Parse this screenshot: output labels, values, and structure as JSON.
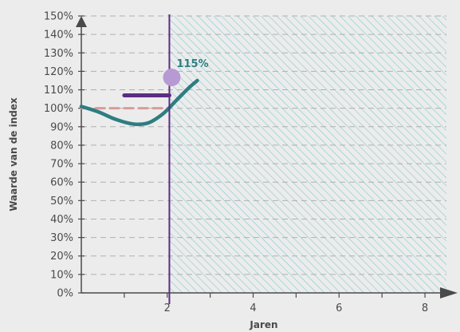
{
  "chart_data": {
    "type": "line",
    "title": "",
    "xlabel": "Jaren",
    "ylabel": "Waarde van de index",
    "xlim": [
      0,
      8.5
    ],
    "ylim": [
      0,
      150
    ],
    "x_ticks": [
      2,
      4,
      6,
      8
    ],
    "x_minor_ticks": [
      1,
      3,
      5,
      7
    ],
    "y_ticks": [
      0,
      10,
      20,
      30,
      40,
      50,
      60,
      70,
      80,
      90,
      100,
      110,
      120,
      130,
      140,
      150
    ],
    "y_tick_labels": [
      "0%",
      "10%",
      "20%",
      "30%",
      "40%",
      "50%",
      "60%",
      "70%",
      "80%",
      "90%",
      "100%",
      "110%",
      "120%",
      "130%",
      "140%",
      "150%"
    ],
    "grid": "horizontal dashed",
    "series": [
      {
        "points": [
          {
            "x": 0,
            "y": 101
          },
          {
            "x": 0.4,
            "y": 98
          },
          {
            "x": 0.8,
            "y": 94
          },
          {
            "x": 1.2,
            "y": 91.5
          },
          {
            "x": 1.55,
            "y": 92
          },
          {
            "x": 1.9,
            "y": 97
          },
          {
            "x": 2.2,
            "y": 104
          },
          {
            "x": 2.5,
            "y": 111
          },
          {
            "x": 2.7,
            "y": 115
          }
        ],
        "color": "#2e7d82"
      }
    ],
    "reference_lines": [
      {
        "y": 100,
        "x_start": 0,
        "x_end": 2.05,
        "style": "dashed",
        "color": "#d99a9a"
      },
      {
        "y": 107,
        "x_start": 1.0,
        "x_end": 2.05,
        "style": "solid",
        "color": "#5c2d82"
      }
    ],
    "vertical_marker": {
      "x": 2.05,
      "color": "#5c2d82"
    },
    "highlight_point": {
      "x": 2.05,
      "y": 115,
      "label": "115%",
      "color": "#b79ad3",
      "label_color": "#2e7d82"
    },
    "shaded_region": {
      "x_start": 2.05,
      "x_end": 8.5,
      "pattern": "diagonal-hatch",
      "color": "#7fcbd0"
    },
    "colors": {
      "axis": "#4a4a4a",
      "grid": "#b0b0b0",
      "background": "#ececec"
    }
  }
}
